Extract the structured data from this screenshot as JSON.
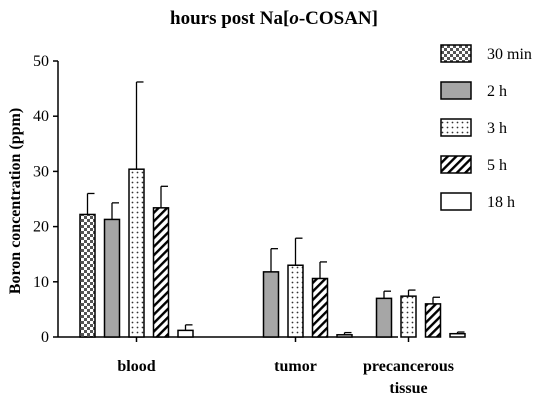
{
  "chart_data": {
    "type": "bar",
    "title_prefix": "hours post Na[",
    "title_italic": "o",
    "title_suffix": "-COSAN]",
    "ylabel": "Boron concentration (ppm)",
    "categories": [
      {
        "lines": [
          "blood"
        ]
      },
      {
        "lines": [
          "tumor"
        ]
      },
      {
        "lines": [
          "precancerous",
          "tissue"
        ]
      }
    ],
    "ylim": [
      0,
      50
    ],
    "yticks": [
      0,
      10,
      20,
      30,
      40,
      50
    ],
    "legend_position": "right",
    "series": [
      {
        "name": "30 min",
        "pattern": "checker",
        "values": [
          22.2,
          null,
          null
        ],
        "errors": [
          3.8,
          null,
          null
        ]
      },
      {
        "name": "2 h",
        "pattern": "gray",
        "values": [
          21.3,
          11.8,
          7.0
        ],
        "errors": [
          3.0,
          4.2,
          1.3
        ]
      },
      {
        "name": "3 h",
        "pattern": "dots",
        "values": [
          30.4,
          13.0,
          7.4
        ],
        "errors": [
          15.8,
          4.9,
          1.1
        ]
      },
      {
        "name": "5 h",
        "pattern": "hatch",
        "values": [
          23.4,
          10.6,
          6.0
        ],
        "errors": [
          3.9,
          3.0,
          1.2
        ]
      },
      {
        "name": "18 h",
        "pattern": "white",
        "values": [
          1.2,
          0.4,
          0.6
        ],
        "errors": [
          1.0,
          0.4,
          0.3
        ]
      }
    ]
  }
}
